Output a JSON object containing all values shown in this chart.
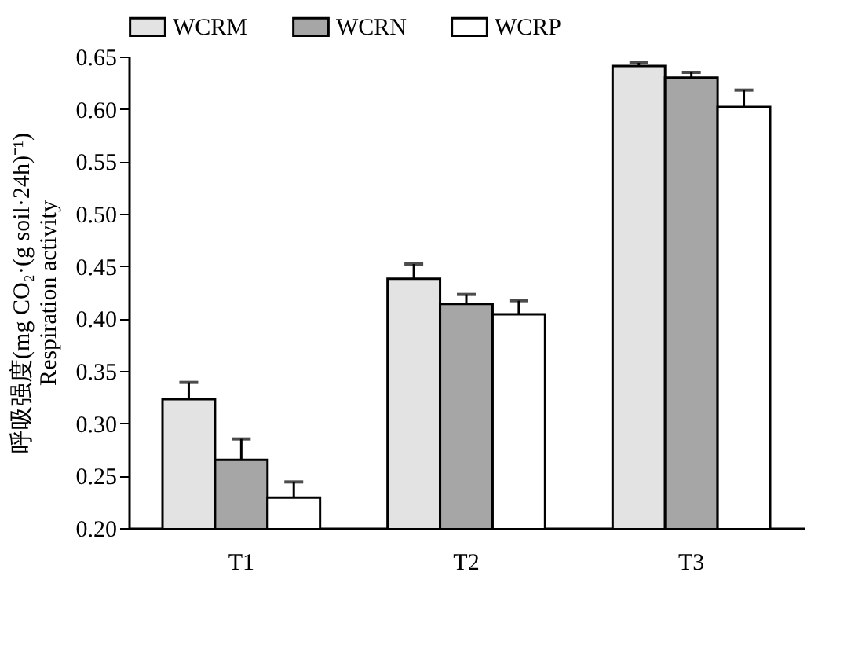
{
  "chart_data": {
    "type": "bar",
    "ylabel": "呼吸强度(mg CO₂·(g soil·24h)⁻¹)\nRespiration activity",
    "categories": [
      "T1",
      "T2",
      "T3"
    ],
    "series": [
      {
        "name": "WCRM",
        "color": "#e3e3e3",
        "values": [
          0.323,
          0.438,
          0.641
        ],
        "errors": [
          0.016,
          0.014,
          0.003
        ]
      },
      {
        "name": "WCRN",
        "color": "#a6a6a6",
        "values": [
          0.265,
          0.414,
          0.63
        ],
        "errors": [
          0.02,
          0.009,
          0.005
        ]
      },
      {
        "name": "WCRP",
        "color": "#ffffff",
        "values": [
          0.229,
          0.404,
          0.602
        ],
        "errors": [
          0.015,
          0.013,
          0.016
        ]
      }
    ],
    "ylim": [
      0.2,
      0.65
    ],
    "yticks": [
      {
        "value": 0.2,
        "label": "0.20"
      },
      0.25,
      {
        "value": 0.3,
        "label": "0.30"
      },
      0.35,
      {
        "value": 0.4,
        "label": "0.40"
      },
      0.45,
      {
        "value": 0.5,
        "label": "0.50"
      },
      0.55,
      {
        "value": 0.6,
        "label": "0.60"
      },
      0.65
    ],
    "grid": false,
    "legend": "top"
  }
}
